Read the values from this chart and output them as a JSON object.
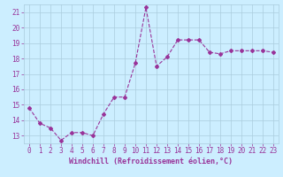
{
  "x": [
    0,
    1,
    2,
    3,
    4,
    5,
    6,
    7,
    8,
    9,
    10,
    11,
    12,
    13,
    14,
    15,
    16,
    17,
    18,
    19,
    20,
    21,
    22,
    23
  ],
  "y": [
    14.8,
    13.8,
    13.5,
    12.7,
    13.2,
    13.2,
    13.0,
    14.4,
    15.5,
    15.5,
    17.7,
    21.3,
    17.5,
    18.1,
    19.2,
    19.2,
    19.2,
    18.4,
    18.3,
    18.5,
    18.5,
    18.5,
    18.5,
    18.4
  ],
  "line_color": "#993399",
  "marker": "D",
  "marker_size": 2,
  "bg_color": "#cceeff",
  "grid_color": "#aaccdd",
  "xlabel": "Windchill (Refroidissement éolien,°C)",
  "xlabel_color": "#993399",
  "tick_color": "#993399",
  "ylim": [
    12.5,
    21.5
  ],
  "xlim": [
    -0.5,
    23.5
  ],
  "yticks": [
    13,
    14,
    15,
    16,
    17,
    18,
    19,
    20,
    21
  ],
  "xticks": [
    0,
    1,
    2,
    3,
    4,
    5,
    6,
    7,
    8,
    9,
    10,
    11,
    12,
    13,
    14,
    15,
    16,
    17,
    18,
    19,
    20,
    21,
    22,
    23
  ],
  "font_family": "monospace",
  "tick_fontsize": 5.5,
  "xlabel_fontsize": 6.0,
  "linewidth": 0.8
}
